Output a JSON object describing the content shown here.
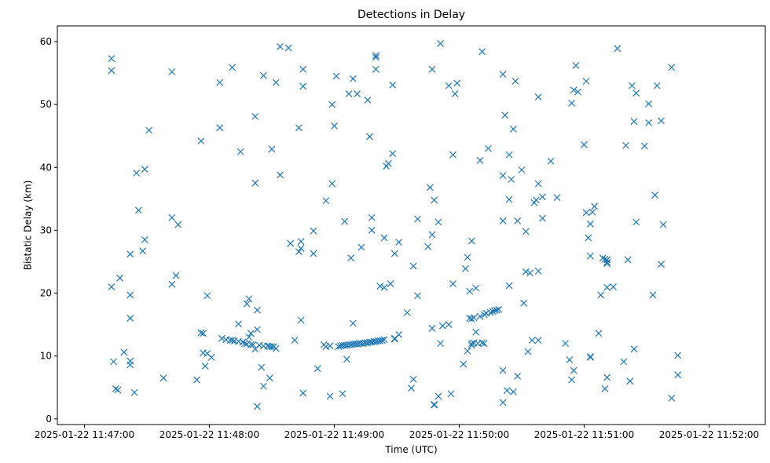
{
  "chart_data": {
    "type": "scatter",
    "title": "Detections in Delay",
    "xlabel": "Time (UTC)",
    "ylabel": "Bistatic Delay (km)",
    "x_ticks": [
      "2025-01-22 11:47:00",
      "2025-01-22 11:48:00",
      "2025-01-22 11:49:00",
      "2025-01-22 11:50:00",
      "2025-01-22 11:51:00",
      "2025-01-22 11:52:00"
    ],
    "y_ticks": [
      0,
      10,
      20,
      30,
      40,
      50,
      60
    ],
    "xlim": [
      "2025-01-22 11:46:47",
      "2025-01-22 11:52:27"
    ],
    "ylim": [
      -0.9,
      62.5
    ],
    "grid": false,
    "marker": "x",
    "marker_color": "#1f77b4",
    "series": [
      {
        "points": [
          [
            "11:47:13",
            57.3
          ],
          [
            "11:47:13",
            55.4
          ],
          [
            "11:47:13",
            21
          ],
          [
            "11:47:14",
            9.1
          ],
          [
            "11:47:15",
            4.8
          ],
          [
            "11:47:16",
            4.6
          ],
          [
            "11:47:17",
            22.4
          ],
          [
            "11:47:19",
            10.6
          ],
          [
            "11:47:22",
            19.7
          ],
          [
            "11:47:22",
            26.2
          ],
          [
            "11:47:22",
            16
          ],
          [
            "11:47:22",
            9.2
          ],
          [
            "11:47:22",
            8.6
          ],
          [
            "11:47:24",
            4.2
          ],
          [
            "11:47:25",
            39.1
          ],
          [
            "11:47:26",
            33.2
          ],
          [
            "11:47:28",
            26.7
          ],
          [
            "11:47:29",
            39.7
          ],
          [
            "11:47:29",
            28.5
          ],
          [
            "11:47:31",
            45.9
          ],
          [
            "11:47:38",
            6.5
          ],
          [
            "11:47:42",
            55.2
          ],
          [
            "11:47:42",
            32
          ],
          [
            "11:47:42",
            21.4
          ],
          [
            "11:47:44",
            22.8
          ],
          [
            "11:47:45",
            30.9
          ],
          [
            "11:47:54",
            6.2
          ],
          [
            "11:47:56",
            44.2
          ],
          [
            "11:47:56",
            13.7
          ],
          [
            "11:47:57",
            13.6
          ],
          [
            "11:47:57",
            10.5
          ],
          [
            "11:47:58",
            8.4
          ],
          [
            "11:47:59",
            19.6
          ],
          [
            "11:47:59",
            10.4
          ],
          [
            "11:48:01",
            9.8
          ],
          [
            "11:48:05",
            53.5
          ],
          [
            "11:48:05",
            46.3
          ],
          [
            "11:48:06",
            12.8
          ],
          [
            "11:48:08",
            12.6
          ],
          [
            "11:48:10",
            12.5
          ],
          [
            "11:48:11",
            12.5
          ],
          [
            "11:48:11",
            55.9
          ],
          [
            "11:48:12",
            12.4
          ],
          [
            "11:48:14",
            12.3
          ],
          [
            "11:48:14",
            15.1
          ],
          [
            "11:48:15",
            42.5
          ],
          [
            "11:48:16",
            12.2
          ],
          [
            "11:48:17",
            12.0
          ],
          [
            "11:48:18",
            18.3
          ],
          [
            "11:48:18",
            11.9
          ],
          [
            "11:48:19",
            19.1
          ],
          [
            "11:48:19",
            13
          ],
          [
            "11:48:20",
            11.8
          ],
          [
            "11:48:20",
            13.6
          ],
          [
            "11:48:21",
            11.8
          ],
          [
            "11:48:22",
            48.1
          ],
          [
            "11:48:22",
            37.5
          ],
          [
            "11:48:22",
            11.1
          ],
          [
            "11:48:23",
            17.3
          ],
          [
            "11:48:23",
            14.2
          ],
          [
            "11:48:23",
            2
          ],
          [
            "11:48:24",
            11.7
          ],
          [
            "11:48:25",
            8.2
          ],
          [
            "11:48:26",
            54.6
          ],
          [
            "11:48:26",
            5.2
          ],
          [
            "11:48:26",
            11.6
          ],
          [
            "11:48:28",
            11.6
          ],
          [
            "11:48:29",
            6.5
          ],
          [
            "11:48:29",
            11.5
          ],
          [
            "11:48:30",
            42.9
          ],
          [
            "11:48:30",
            11.5
          ],
          [
            "11:48:31",
            11.5
          ],
          [
            "11:48:32",
            53.5
          ],
          [
            "11:48:32",
            11.2
          ],
          [
            "11:48:34",
            59.2
          ],
          [
            "11:48:34",
            38.8
          ],
          [
            "11:48:38",
            59
          ],
          [
            "11:48:39",
            27.9
          ],
          [
            "11:48:41",
            12.5
          ],
          [
            "11:48:43",
            46.3
          ],
          [
            "11:48:43",
            26.6
          ],
          [
            "11:48:44",
            15.7
          ],
          [
            "11:48:44",
            28.2
          ],
          [
            "11:48:44",
            27.1
          ],
          [
            "11:48:45",
            55.6
          ],
          [
            "11:48:45",
            52.9
          ],
          [
            "11:48:45",
            4.1
          ],
          [
            "11:48:50",
            26.3
          ],
          [
            "11:48:50",
            29.9
          ],
          [
            "11:48:52",
            8
          ],
          [
            "11:48:55",
            11.8
          ],
          [
            "11:48:56",
            11.5
          ],
          [
            "11:48:56",
            34.7
          ],
          [
            "11:48:58",
            11.6
          ],
          [
            "11:48:58",
            3.6
          ],
          [
            "11:48:59",
            50
          ],
          [
            "11:48:59",
            37.4
          ],
          [
            "11:49:00",
            46.6
          ],
          [
            "11:49:01",
            54.5
          ],
          [
            "11:49:02",
            11.5
          ],
          [
            "11:49:03",
            11.6
          ],
          [
            "11:49:04",
            4
          ],
          [
            "11:49:04",
            11.7
          ],
          [
            "11:49:05",
            11.7
          ],
          [
            "11:49:05",
            31.4
          ],
          [
            "11:49:06",
            11.7
          ],
          [
            "11:49:06",
            9.5
          ],
          [
            "11:49:07",
            51.7
          ],
          [
            "11:49:07",
            11.8
          ],
          [
            "11:49:08",
            25.6
          ],
          [
            "11:49:08",
            11.8
          ],
          [
            "11:49:09",
            11.9
          ],
          [
            "11:49:09",
            15.2
          ],
          [
            "11:49:09",
            54.1
          ],
          [
            "11:49:10",
            11.9
          ],
          [
            "11:49:11",
            11.9
          ],
          [
            "11:49:11",
            51.7
          ],
          [
            "11:49:12",
            12.0
          ],
          [
            "11:49:13",
            12.0
          ],
          [
            "11:49:13",
            27.3
          ],
          [
            "11:49:14",
            12.0
          ],
          [
            "11:49:15",
            12.1
          ],
          [
            "11:49:16",
            12.1
          ],
          [
            "11:49:16",
            50.7
          ],
          [
            "11:49:17",
            12.2
          ],
          [
            "11:49:17",
            44.9
          ],
          [
            "11:49:18",
            12.2
          ],
          [
            "11:49:18",
            30
          ],
          [
            "11:49:18",
            32
          ],
          [
            "11:49:19",
            12.3
          ],
          [
            "11:49:20",
            57.8
          ],
          [
            "11:49:20",
            57.5
          ],
          [
            "11:49:20",
            55.6
          ],
          [
            "11:49:20",
            12.3
          ],
          [
            "11:49:21",
            12.4
          ],
          [
            "11:49:22",
            21.1
          ],
          [
            "11:49:22",
            12.4
          ],
          [
            "11:49:23",
            12.5
          ],
          [
            "11:49:24",
            28.8
          ],
          [
            "11:49:24",
            12.6
          ],
          [
            "11:49:24",
            20.9
          ],
          [
            "11:49:25",
            40.2
          ],
          [
            "11:49:26",
            40.6
          ],
          [
            "11:49:27",
            21.5
          ],
          [
            "11:49:28",
            53.1
          ],
          [
            "11:49:28",
            42.2
          ],
          [
            "11:49:29",
            26.3
          ],
          [
            "11:49:29",
            12.8
          ],
          [
            "11:49:29",
            12.7
          ],
          [
            "11:49:31",
            13.4
          ],
          [
            "11:49:31",
            28.1
          ],
          [
            "11:49:35",
            16.9
          ],
          [
            "11:49:37",
            4.9
          ],
          [
            "11:49:38",
            24.3
          ],
          [
            "11:49:38",
            6.3
          ],
          [
            "11:49:40",
            19.6
          ],
          [
            "11:49:40",
            31.8
          ],
          [
            "11:49:45",
            27.4
          ],
          [
            "11:49:46",
            36.8
          ],
          [
            "11:49:47",
            14.4
          ],
          [
            "11:49:47",
            29.3
          ],
          [
            "11:49:47",
            55.6
          ],
          [
            "11:49:48",
            34.8
          ],
          [
            "11:49:48",
            2.2
          ],
          [
            "11:49:48",
            2.3
          ],
          [
            "11:49:50",
            31.3
          ],
          [
            "11:49:50",
            3.6
          ],
          [
            "11:49:51",
            59.7
          ],
          [
            "11:49:51",
            12
          ],
          [
            "11:49:52",
            14.8
          ],
          [
            "11:49:55",
            15
          ],
          [
            "11:49:55",
            53
          ],
          [
            "11:49:56",
            4
          ],
          [
            "11:49:57",
            42
          ],
          [
            "11:49:57",
            21.5
          ],
          [
            "11:49:58",
            51.7
          ],
          [
            "11:49:59",
            53.4
          ],
          [
            "11:50:02",
            8.7
          ],
          [
            "11:50:03",
            23.9
          ],
          [
            "11:50:04",
            25.7
          ],
          [
            "11:50:04",
            10.8
          ],
          [
            "11:50:05",
            16
          ],
          [
            "11:50:05",
            20.3
          ],
          [
            "11:50:06",
            15.9
          ],
          [
            "11:50:06",
            28.3
          ],
          [
            "11:50:06",
            11.7
          ],
          [
            "11:50:06",
            12.0
          ],
          [
            "11:50:07",
            12.1
          ],
          [
            "11:50:07",
            16.1
          ],
          [
            "11:50:08",
            13.8
          ],
          [
            "11:50:08",
            20.8
          ],
          [
            "11:50:09",
            12.0
          ],
          [
            "11:50:10",
            41.1
          ],
          [
            "11:50:10",
            16.3
          ],
          [
            "11:50:11",
            58.4
          ],
          [
            "11:50:11",
            12.1
          ],
          [
            "11:50:12",
            16.6
          ],
          [
            "11:50:12",
            12.0
          ],
          [
            "11:50:13",
            16.8
          ],
          [
            "11:50:14",
            43
          ],
          [
            "11:50:15",
            16.9
          ],
          [
            "11:50:16",
            17.1
          ],
          [
            "11:50:17",
            17.2
          ],
          [
            "11:50:18",
            17.3
          ],
          [
            "11:50:19",
            17.4
          ],
          [
            "11:50:21",
            54.8
          ],
          [
            "11:50:21",
            38.7
          ],
          [
            "11:50:21",
            31.5
          ],
          [
            "11:50:21",
            7.7
          ],
          [
            "11:50:21",
            2.6
          ],
          [
            "11:50:22",
            48.3
          ],
          [
            "11:50:23",
            4.5
          ],
          [
            "11:50:24",
            42
          ],
          [
            "11:50:24",
            34.9
          ],
          [
            "11:50:24",
            21.2
          ],
          [
            "11:50:25",
            38.1
          ],
          [
            "11:50:26",
            46.1
          ],
          [
            "11:50:26",
            4.3
          ],
          [
            "11:50:27",
            53.7
          ],
          [
            "11:50:28",
            31.5
          ],
          [
            "11:50:28",
            6.8
          ],
          [
            "11:50:30",
            39.6
          ],
          [
            "11:50:31",
            18.4
          ],
          [
            "11:50:32",
            29.8
          ],
          [
            "11:50:32",
            23.4
          ],
          [
            "11:50:33",
            10.7
          ],
          [
            "11:50:34",
            23.2
          ],
          [
            "11:50:35",
            12.5
          ],
          [
            "11:50:36",
            34.4
          ],
          [
            "11:50:37",
            34.8
          ],
          [
            "11:50:38",
            51.2
          ],
          [
            "11:50:38",
            37.4
          ],
          [
            "11:50:38",
            23.5
          ],
          [
            "11:50:38",
            12.5
          ],
          [
            "11:50:40",
            35.3
          ],
          [
            "11:50:40",
            31.9
          ],
          [
            "11:50:44",
            41
          ],
          [
            "11:50:47",
            35.2
          ],
          [
            "11:50:51",
            12
          ],
          [
            "11:50:53",
            9.4
          ],
          [
            "11:50:54",
            50.2
          ],
          [
            "11:50:54",
            6.2
          ],
          [
            "11:50:55",
            52.3
          ],
          [
            "11:50:55",
            7.7
          ],
          [
            "11:50:56",
            56.2
          ],
          [
            "11:50:57",
            52
          ],
          [
            "11:51:00",
            43.6
          ],
          [
            "11:51:01",
            53.7
          ],
          [
            "11:51:01",
            32.8
          ],
          [
            "11:51:02",
            28.8
          ],
          [
            "11:51:03",
            31
          ],
          [
            "11:51:03",
            25.9
          ],
          [
            "11:51:03",
            9.9
          ],
          [
            "11:51:03",
            9.8
          ],
          [
            "11:51:04",
            32.9
          ],
          [
            "11:51:05",
            33.8
          ],
          [
            "11:51:07",
            13.6
          ],
          [
            "11:51:08",
            19.7
          ],
          [
            "11:51:09",
            25.6
          ],
          [
            "11:51:10",
            25.4
          ],
          [
            "11:51:10",
            4.8
          ],
          [
            "11:51:11",
            25.3
          ],
          [
            "11:51:11",
            24.7
          ],
          [
            "11:51:11",
            24.9
          ],
          [
            "11:51:11",
            20.9
          ],
          [
            "11:51:11",
            6.6
          ],
          [
            "11:51:14",
            21
          ],
          [
            "11:51:16",
            58.9
          ],
          [
            "11:51:19",
            9.1
          ],
          [
            "11:51:20",
            43.5
          ],
          [
            "11:51:21",
            25.3
          ],
          [
            "11:51:22",
            6
          ],
          [
            "11:51:23",
            53
          ],
          [
            "11:51:24",
            47.3
          ],
          [
            "11:51:24",
            11.1
          ],
          [
            "11:51:25",
            51.8
          ],
          [
            "11:51:25",
            31.3
          ],
          [
            "11:51:29",
            43.4
          ],
          [
            "11:51:31",
            50.1
          ],
          [
            "11:51:31",
            47.1
          ],
          [
            "11:51:33",
            19.7
          ],
          [
            "11:51:34",
            35.6
          ],
          [
            "11:51:35",
            53
          ],
          [
            "11:51:37",
            47.4
          ],
          [
            "11:51:37",
            24.6
          ],
          [
            "11:51:38",
            30.9
          ],
          [
            "11:51:42",
            55.9
          ],
          [
            "11:51:42",
            3.3
          ],
          [
            "11:51:45",
            10.1
          ],
          [
            "11:51:45",
            7
          ]
        ]
      }
    ]
  }
}
